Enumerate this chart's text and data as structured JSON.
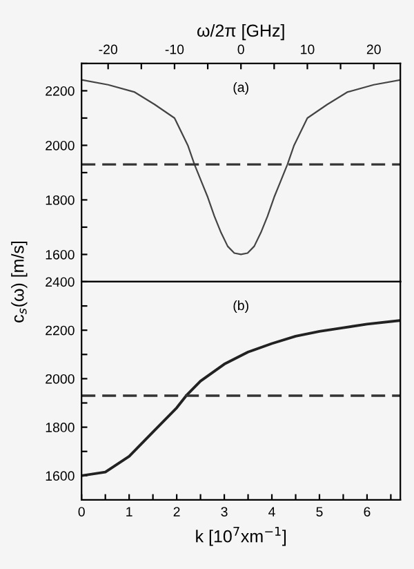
{
  "chart_data": [
    {
      "type": "line",
      "xlabel": "ω/2π [GHz]",
      "xlim": [
        -24,
        24
      ],
      "xticks": [
        -20,
        {
          "value": -15,
          "label": null
        },
        -10,
        {
          "value": -5,
          "label": null
        },
        0,
        {
          "value": 5,
          "label": null
        },
        10,
        {
          "value": 15,
          "label": null
        },
        20
      ],
      "ylim": [
        1500,
        2300
      ],
      "yticks": [
        1600,
        {
          "value": 1700,
          "label": null
        },
        1800,
        {
          "value": 1900,
          "label": null
        },
        2000,
        {
          "value": 2100,
          "label": null
        },
        2200,
        {
          "value": 2300,
          "label": null
        }
      ],
      "series": [
        {
          "color": "#444444",
          "x": [
            -24,
            -20,
            -16,
            -13,
            -10,
            -8,
            -7,
            -6,
            -5,
            -4,
            -3,
            -2,
            -1,
            0,
            1,
            2,
            3,
            4,
            5,
            6,
            7,
            8,
            10,
            13,
            16,
            20,
            24
          ],
          "values": [
            2240,
            2222,
            2195,
            2150,
            2100,
            2000,
            1930,
            1870,
            1810,
            1740,
            1680,
            1630,
            1605,
            1600,
            1605,
            1630,
            1680,
            1740,
            1810,
            1870,
            1930,
            2000,
            2100,
            2150,
            2195,
            2222,
            2240
          ]
        }
      ],
      "ref_lines": [
        {
          "axis": "y",
          "value": 1930,
          "color": "#333333",
          "line_style": "dashed"
        }
      ],
      "annotations": [
        "(a)"
      ],
      "line_style": "solid",
      "grid": false
    },
    {
      "type": "line",
      "xlabel": "k [10$^{7}$xm$^{−1}$]",
      "ylabel": "c$_{s}$(ω) [m/s]",
      "xlim": [
        0,
        6.7
      ],
      "xticks": [
        0,
        {
          "value": 0.5,
          "label": null
        },
        1,
        {
          "value": 1.5,
          "label": null
        },
        2,
        {
          "value": 2.5,
          "label": null
        },
        3,
        {
          "value": 3.5,
          "label": null
        },
        4,
        {
          "value": 4.5,
          "label": null
        },
        5,
        {
          "value": 5.5,
          "label": null
        },
        6,
        {
          "value": 6.5,
          "label": null
        }
      ],
      "ylim": [
        1500,
        2400
      ],
      "yticks": [
        1600,
        {
          "value": 1700,
          "label": null
        },
        1800,
        {
          "value": 1900,
          "label": null
        },
        2000,
        {
          "value": 2100,
          "label": null
        },
        2200,
        {
          "value": 2300,
          "label": null
        },
        2400
      ],
      "series": [
        {
          "color": "#222222",
          "x": [
            0,
            0.5,
            1,
            1.5,
            2,
            2.2,
            2.5,
            3,
            3.5,
            4,
            4.5,
            5,
            5.5,
            6,
            6.7
          ],
          "values": [
            1600,
            1615,
            1680,
            1780,
            1880,
            1930,
            1990,
            2060,
            2110,
            2145,
            2175,
            2195,
            2210,
            2225,
            2240
          ]
        }
      ],
      "ref_lines": [
        {
          "axis": "y",
          "value": 1930,
          "color": "#333333",
          "line_style": "dashed"
        }
      ],
      "annotations": [
        "(b)"
      ],
      "line_style": "solid",
      "grid": false
    }
  ]
}
